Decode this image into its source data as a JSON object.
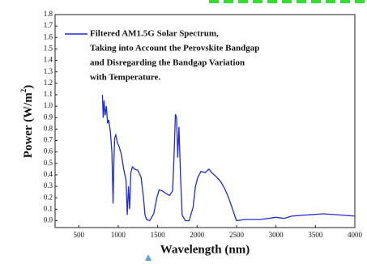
{
  "chart_data": {
    "type": "line",
    "xlabel": "Wavelength (nm)",
    "ylabel": {
      "text": "Power (W/m",
      "sup": "2",
      "end": ")"
    },
    "xlim": [
      200,
      4000
    ],
    "ylim": [
      -0.06,
      1.8
    ],
    "xticks": [
      500,
      1000,
      1500,
      2000,
      2500,
      3000,
      3500,
      4000
    ],
    "yticks": [
      {
        "value": 0,
        "label": "0.0"
      },
      0.1,
      0.2,
      0.3,
      0.4,
      0.5,
      0.6,
      0.7,
      0.8,
      0.9,
      {
        "value": 1,
        "label": "1.0"
      },
      1.1,
      1.2,
      1.3,
      1.4,
      1.5,
      1.6,
      1.7,
      1.8
    ],
    "legend_position": "upper right",
    "series": [
      {
        "name": [
          "Filtered AM1.5G Solar Spectrum,",
          "Taking into Account the Perovskite Bandgap",
          "and Disregarding the Bandgap Variation",
          "with Temperature."
        ],
        "color": "#1f2bd6",
        "x": [
          800,
          810,
          820,
          835,
          850,
          865,
          880,
          900,
          920,
          935,
          945,
          955,
          970,
          990,
          1010,
          1040,
          1070,
          1100,
          1115,
          1130,
          1145,
          1160,
          1180,
          1210,
          1250,
          1290,
          1320,
          1340,
          1360,
          1400,
          1450,
          1490,
          1520,
          1560,
          1600,
          1650,
          1690,
          1710,
          1725,
          1740,
          1755,
          1770,
          1790,
          1810,
          1850,
          1900,
          1950,
          1980,
          2010,
          2050,
          2100,
          2150,
          2200,
          2250,
          2300,
          2350,
          2400,
          2450,
          2500,
          2600,
          2800,
          3000,
          3100,
          3200,
          3400,
          3600,
          3800,
          4000
        ],
        "values": [
          1.1,
          0.9,
          1.05,
          0.92,
          1.0,
          0.85,
          0.88,
          0.78,
          0.6,
          0.15,
          0.5,
          0.72,
          0.75,
          0.68,
          0.65,
          0.58,
          0.45,
          0.35,
          0.05,
          0.3,
          0.1,
          0.42,
          0.47,
          0.45,
          0.44,
          0.38,
          0.2,
          0.05,
          0.01,
          0.0,
          0.06,
          0.2,
          0.27,
          0.26,
          0.24,
          0.22,
          0.26,
          0.6,
          0.93,
          0.9,
          0.55,
          0.82,
          0.4,
          0.05,
          0.0,
          0.0,
          0.12,
          0.3,
          0.38,
          0.43,
          0.42,
          0.45,
          0.41,
          0.38,
          0.34,
          0.28,
          0.2,
          0.1,
          0.0,
          0.01,
          0.01,
          0.03,
          0.02,
          0.04,
          0.05,
          0.06,
          0.05,
          0.04
        ]
      }
    ]
  }
}
